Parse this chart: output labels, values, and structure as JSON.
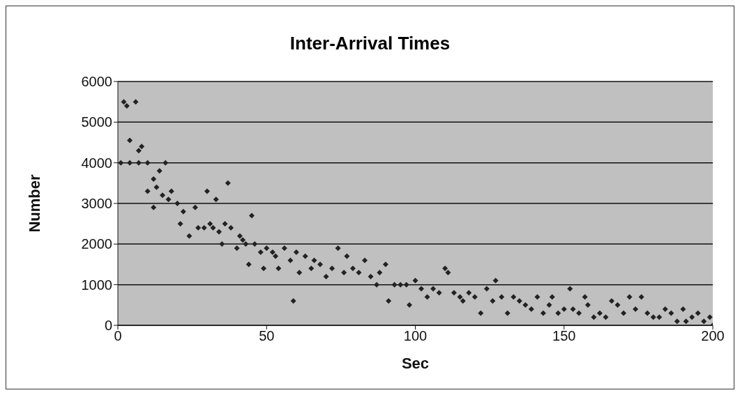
{
  "chart_data": {
    "type": "scatter",
    "title": "Inter-Arrival Times",
    "xlabel": "Sec",
    "ylabel": "Number",
    "xlim": [
      0,
      200
    ],
    "xticks": [
      0,
      50,
      100,
      150,
      200
    ],
    "ylim": [
      0,
      6000
    ],
    "yticks": [
      0,
      1000,
      2000,
      3000,
      4000,
      5000,
      6000
    ],
    "grid": "y",
    "marker": "diamond",
    "series": [
      {
        "color": "#222222",
        "x": [
          2,
          3,
          6,
          4,
          7,
          8,
          1,
          4,
          7,
          10,
          16,
          10,
          12,
          14,
          12,
          13,
          15,
          17,
          18,
          20,
          21,
          22,
          24,
          26,
          27,
          29,
          30,
          31,
          33,
          32,
          34,
          35,
          36,
          37,
          38,
          40,
          41,
          42,
          43,
          44,
          45,
          46,
          48,
          49,
          50,
          52,
          53,
          54,
          56,
          58,
          59,
          60,
          61,
          63,
          65,
          66,
          68,
          70,
          72,
          74,
          76,
          77,
          79,
          81,
          83,
          85,
          87,
          88,
          90,
          91,
          93,
          95,
          97,
          98,
          100,
          102,
          104,
          106,
          108,
          110,
          111,
          113,
          115,
          116,
          118,
          120,
          122,
          124,
          126,
          127,
          129,
          131,
          133,
          135,
          137,
          139,
          141,
          143,
          145,
          146,
          148,
          150,
          152,
          153,
          155,
          157,
          158,
          160,
          162,
          164,
          166,
          168,
          170,
          172,
          174,
          176,
          178,
          180,
          182,
          184,
          186,
          188,
          190,
          191,
          193,
          195,
          197,
          199,
          200
        ],
        "values": [
          5500,
          5400,
          5500,
          4550,
          4300,
          4400,
          4000,
          4000,
          4000,
          4000,
          4000,
          3300,
          3600,
          3800,
          2900,
          3400,
          3200,
          3100,
          3300,
          3000,
          2500,
          2800,
          2200,
          2900,
          2400,
          2400,
          3300,
          2500,
          3100,
          2400,
          2300,
          2000,
          2500,
          3500,
          2400,
          1900,
          2200,
          2100,
          2000,
          1500,
          2700,
          2000,
          1800,
          1400,
          1900,
          1800,
          1700,
          1400,
          1900,
          1600,
          600,
          1800,
          1300,
          1700,
          1400,
          1600,
          1500,
          1200,
          1400,
          1900,
          1300,
          1700,
          1400,
          1300,
          1600,
          1200,
          1000,
          1300,
          1500,
          600,
          1000,
          1000,
          1000,
          500,
          1100,
          900,
          700,
          900,
          800,
          1400,
          1300,
          800,
          700,
          600,
          800,
          700,
          300,
          900,
          600,
          1100,
          700,
          300,
          700,
          600,
          500,
          400,
          700,
          300,
          500,
          700,
          300,
          400,
          900,
          400,
          300,
          700,
          500,
          200,
          300,
          200,
          600,
          500,
          300,
          700,
          400,
          700,
          300,
          200,
          200,
          400,
          300,
          100,
          400,
          100,
          200,
          300,
          100,
          200,
          0
        ]
      }
    ]
  }
}
